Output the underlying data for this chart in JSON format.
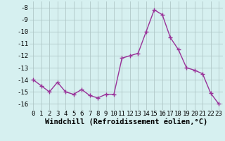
{
  "x": [
    0,
    1,
    2,
    3,
    4,
    5,
    6,
    7,
    8,
    9,
    10,
    11,
    12,
    13,
    14,
    15,
    16,
    17,
    18,
    19,
    20,
    21,
    22,
    23
  ],
  "y": [
    -14.0,
    -14.5,
    -15.0,
    -14.2,
    -15.0,
    -15.2,
    -14.8,
    -15.3,
    -15.5,
    -15.2,
    -15.2,
    -12.2,
    -12.0,
    -11.8,
    -10.0,
    -8.2,
    -8.6,
    -10.5,
    -11.5,
    -13.0,
    -13.2,
    -13.5,
    -15.1,
    -16.0
  ],
  "line_color": "#993399",
  "marker": "+",
  "marker_size": 4,
  "bg_color": "#d6f0f0",
  "grid_color": "#b0c8c8",
  "xlabel": "Windchill (Refroidissement éolien,°C)",
  "ylim": [
    -16.5,
    -7.5
  ],
  "xlim": [
    -0.5,
    23.5
  ],
  "yticks": [
    -16,
    -15,
    -14,
    -13,
    -12,
    -11,
    -10,
    -9,
    -8
  ],
  "xticks": [
    0,
    1,
    2,
    3,
    4,
    5,
    6,
    7,
    8,
    9,
    10,
    11,
    12,
    13,
    14,
    15,
    16,
    17,
    18,
    19,
    20,
    21,
    22,
    23
  ],
  "tick_fontsize": 6.5,
  "xlabel_fontsize": 7.5,
  "line_width": 1.0,
  "marker_color": "#993399"
}
